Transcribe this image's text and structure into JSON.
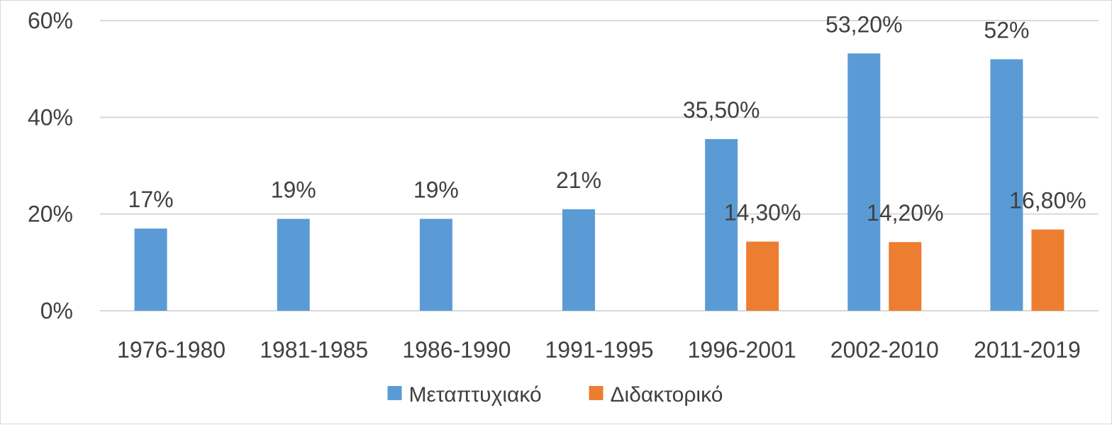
{
  "chart_data": {
    "type": "bar",
    "categories": [
      "1976-1980",
      "1981-1985",
      "1986-1990",
      "1991-1995",
      "1996-2001",
      "2002-2010",
      "2011-2019"
    ],
    "series": [
      {
        "name": "Μεταπτυχιακό",
        "color": "#5B9BD5",
        "values": [
          17,
          19,
          19,
          21,
          35.5,
          53.2,
          52
        ],
        "data_labels": [
          "17%",
          "19%",
          "19%",
          "21%",
          "35,50%",
          "53,20%",
          "52%"
        ]
      },
      {
        "name": "Διδακτορικό",
        "color": "#ED7D31",
        "values": [
          null,
          null,
          null,
          null,
          14.3,
          14.2,
          16.8
        ],
        "data_labels": [
          "",
          "",
          "",
          "",
          "14,30%",
          "14,20%",
          "16,80%"
        ]
      }
    ],
    "ylim": [
      0,
      60
    ],
    "yticks": [
      0,
      20,
      40,
      60
    ],
    "ytick_labels": [
      "0%",
      "20%",
      "40%",
      "60%"
    ],
    "grid": true,
    "legend_position": "bottom"
  }
}
